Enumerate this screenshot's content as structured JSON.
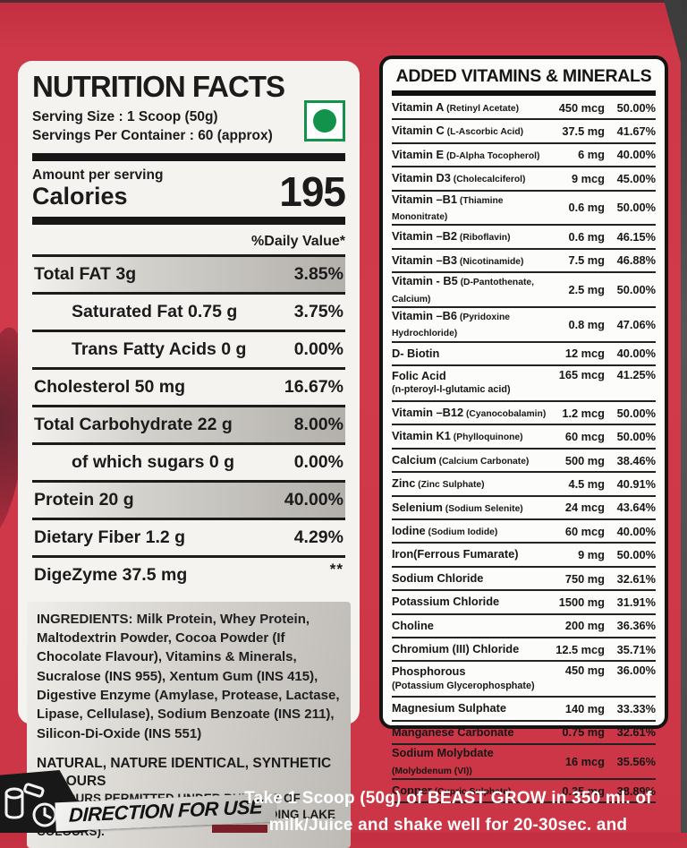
{
  "colors": {
    "background_red": "#ce3848",
    "panel_white": "#f4f3f0",
    "veg_green": "#12924a",
    "bar_black": "#171717",
    "silver": "#bdbab5"
  },
  "left_panel": {
    "title": "NUTRITION FACTS",
    "serving_size": "Serving Size : 1 Scoop (50g)",
    "servings_per_container": "Servings Per Container :  60 (approx)",
    "amount_per_serving": "Amount per serving",
    "calories_label": "Calories",
    "calories_value": "195",
    "daily_value_header": "%Daily Value*",
    "rows": [
      {
        "label": "Total FAT 3g",
        "value": "3.85%",
        "indent": false,
        "silver": true
      },
      {
        "label": "Saturated Fat 0.75 g",
        "value": "3.75%",
        "indent": true,
        "silver": false
      },
      {
        "label": "Trans Fatty Acids 0 g",
        "value": "0.00%",
        "indent": true,
        "silver": false
      },
      {
        "label": "Cholesterol 50 mg",
        "value": "16.67%",
        "indent": false,
        "silver": false
      },
      {
        "label": "Total Carbohydrate 22 g",
        "value": "8.00%",
        "indent": false,
        "silver": true
      },
      {
        "label": "of which sugars 0 g",
        "value": "0.00%",
        "indent": true,
        "silver": false
      },
      {
        "label": "Protein 20 g",
        "value": "40.00%",
        "indent": false,
        "silver": true
      },
      {
        "label": "Dietary Fiber 1.2 g",
        "value": "4.29%",
        "indent": false,
        "silver": false
      },
      {
        "label": "DigeZyme 37.5 mg",
        "value": "**",
        "indent": false,
        "silver": false,
        "stars": true
      }
    ],
    "ingredients": "INGREDIENTS: Milk Protein, Whey Protein, Maltodextrin Powder, Cocoa Powder (If Chocolate Flavour), Vitamins & Minerals, Sucralose (INS 955), Xentum Gum (INS 415), Digestive Enzyme (Amylase, Protease, Lactase, Lipase, Cellulase), Sodium Benzoate (INS 211), Silicon-Di-Oxide (INS 551)",
    "colours_line1": "NATURAL, NATURE IDENTICAL, SYNTHETIC COLOURS",
    "colours_line2": "(COLOURS PERMITTED UNDER RULE 127 OF DRUGS AND COSMETICS RULES INCLUDING LAKE COLOURS)."
  },
  "right_panel": {
    "title": "ADDED VITAMINS & MINERALS",
    "rows": [
      {
        "name": "Vitamin A",
        "detail": "(Retinyl  Acetate)",
        "amount": "450 mcg",
        "pct": "50.00%"
      },
      {
        "name": "Vitamin C",
        "detail": "(L-Ascorbic Acid)",
        "amount": "37.5 mg",
        "pct": "41.67%"
      },
      {
        "name": "Vitamin E",
        "detail": "(D-Alpha Tocopherol)",
        "amount": "6 mg",
        "pct": "40.00%"
      },
      {
        "name": "Vitamin D3",
        "detail": "(Cholecalciferol)",
        "amount": "9 mcg",
        "pct": "45.00%"
      },
      {
        "name": "Vitamin –B1",
        "detail": "(Thiamine Mononitrate)",
        "amount": "0.6 mg",
        "pct": "50.00%"
      },
      {
        "name": "Vitamin –B2",
        "detail": "(Riboflavin)",
        "amount": "0.6 mg",
        "pct": "46.15%"
      },
      {
        "name": "Vitamin –B3",
        "detail": "(Nicotinamide)",
        "amount": "7.5 mg",
        "pct": "46.88%"
      },
      {
        "name": "Vitamin - B5",
        "detail": "(D-Pantothenate, Calcium)",
        "amount": "2.5 mg",
        "pct": "50.00%"
      },
      {
        "name": "Vitamin –B6",
        "detail": "(Pyridoxine Hydrochloride)",
        "amount": "0.8 mg",
        "pct": "47.06%"
      },
      {
        "name": "D- Biotin",
        "detail": "",
        "amount": "12 mcg",
        "pct": "40.00%"
      },
      {
        "name": "Folic Acid",
        "detail": "",
        "sub": "(n-pteroyl-l-glutamic acid)",
        "amount": "165 mcg",
        "pct": "41.25%"
      },
      {
        "name": "Vitamin –B12",
        "detail": "(Cyanocobalamin)",
        "amount": "1.2 mcg",
        "pct": "50.00%"
      },
      {
        "name": "Vitamin K1",
        "detail": "(Phylloquinone)",
        "amount": "60 mcg",
        "pct": "50.00%"
      },
      {
        "name": "Calcium",
        "detail": "(Calcium Carbonate)",
        "amount": "500 mg",
        "pct": "38.46%"
      },
      {
        "name": "Zinc",
        "detail": "(Zinc Sulphate)",
        "amount": "4.5 mg",
        "pct": "40.91%"
      },
      {
        "name": "Selenium",
        "detail": "(Sodium Selenite)",
        "amount": "24 mcg",
        "pct": "43.64%"
      },
      {
        "name": "Iodine",
        "detail": "(Sodium Iodide)",
        "amount": "60 mcg",
        "pct": "40.00%"
      },
      {
        "name": "Iron(Ferrous Fumarate)",
        "detail": "",
        "amount": "9 mg",
        "pct": "50.00%"
      },
      {
        "name": "Sodium Chloride",
        "detail": "",
        "amount": "750 mg",
        "pct": "32.61%"
      },
      {
        "name": "Potassium Chloride",
        "detail": "",
        "amount": "1500 mg",
        "pct": "31.91%"
      },
      {
        "name": "Choline",
        "detail": "",
        "amount": "200 mg",
        "pct": "36.36%"
      },
      {
        "name": "Chromium (III) Chloride",
        "detail": "",
        "amount": "12.5 mcg",
        "pct": "35.71%"
      },
      {
        "name": "Phosphorous",
        "detail": "",
        "sub": "(Potassium Glycerophosphate)",
        "amount": "450 mg",
        "pct": "36.00%"
      },
      {
        "name": "Magnesium Sulphate",
        "detail": "",
        "amount": "140 mg",
        "pct": "33.33%"
      },
      {
        "name": "Manganese Carbonate",
        "detail": "",
        "amount": "0.75 mg",
        "pct": "32.61%"
      },
      {
        "name": "Sodium Molybdate",
        "detail": "(Molybdenum (VI))",
        "amount": "16 mcg",
        "pct": "35.56%"
      },
      {
        "name": "Copper",
        "detail": "(Cupric Sulphate)",
        "amount": "0.35 mg",
        "pct": "38.89%"
      }
    ]
  },
  "footer": {
    "direction_label": "DIRECTION FOR USE",
    "direction_line1": "Take 1 Scoop (50g) of BEAST GROW in 350 ml. of",
    "direction_line2": "milk/Juice and shake well for 20-30sec. and"
  }
}
